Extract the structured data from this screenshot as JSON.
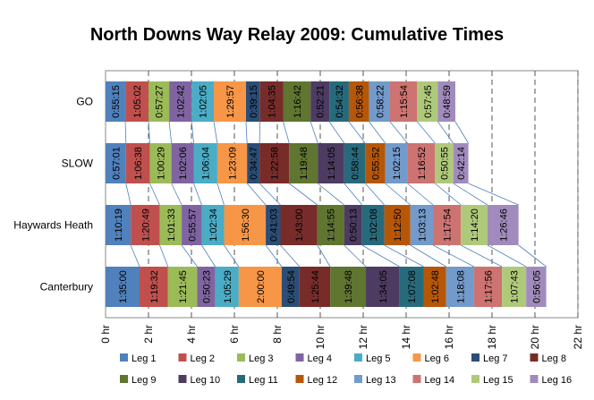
{
  "chart_data": {
    "type": "bar",
    "orientation": "horizontal",
    "stacked": true,
    "title": "North Downs Way Relay 2009: Cumulative Times",
    "xlabel": "",
    "ylabel": "",
    "xlim": [
      0,
      22
    ],
    "x_unit": "hr",
    "x_ticks": [
      "0 hr",
      "2 hr",
      "4 hr",
      "6 hr",
      "8 hr",
      "10 hr",
      "12 hr",
      "14 hr",
      "16 hr",
      "18 hr",
      "20 hr",
      "22 hr"
    ],
    "grid": "vertical dashed",
    "legend_position": "bottom",
    "categories": [
      "GO",
      "SLOW",
      "Haywards Heath",
      "Canterbury"
    ],
    "series": [
      {
        "name": "Leg 1",
        "color": "#4f81bd",
        "labels": [
          "0:55:15",
          "0:57:01",
          "1:10:19",
          "1:35:00"
        ]
      },
      {
        "name": "Leg 2",
        "color": "#c0504d",
        "labels": [
          "1:05:02",
          "1:06:38",
          "1:20:49",
          "1:19:32"
        ]
      },
      {
        "name": "Leg 3",
        "color": "#9bbb59",
        "labels": [
          "0:57:27",
          "1:00:29",
          "1:01:33",
          "1:21:45"
        ]
      },
      {
        "name": "Leg 4",
        "color": "#8064a2",
        "labels": [
          "1:02:42",
          "1:02:06",
          "0:55:57",
          "0:50:23"
        ]
      },
      {
        "name": "Leg 5",
        "color": "#4bacc6",
        "labels": [
          "1:02:05",
          "1:06:04",
          "1:02:34",
          "1:05:29"
        ]
      },
      {
        "name": "Leg 6",
        "color": "#f79646",
        "labels": [
          "1:29:57",
          "1:23:09",
          "1:56:30",
          "2:00:00"
        ]
      },
      {
        "name": "Leg 7",
        "color": "#2c4d75",
        "labels": [
          "0:39:15",
          "0:34:47",
          "0:41:03",
          "0:49:54"
        ]
      },
      {
        "name": "Leg 8",
        "color": "#772c2a",
        "labels": [
          "1:04:35",
          "1:22:58",
          "1:43:00",
          "1:25:44"
        ]
      },
      {
        "name": "Leg 9",
        "color": "#5f7530",
        "labels": [
          "1:16:42",
          "1:19:48",
          "1:14:55",
          "1:39:48"
        ]
      },
      {
        "name": "Leg 10",
        "color": "#4d3b62",
        "labels": [
          "0:52:21",
          "1:14:05",
          "0:50:13",
          "1:34:05"
        ]
      },
      {
        "name": "Leg 11",
        "color": "#276a7c",
        "labels": [
          "0:54:32",
          "0:58:44",
          "1:02:08",
          "1:07:08"
        ]
      },
      {
        "name": "Leg 12",
        "color": "#b65708",
        "labels": [
          "0:56:38",
          "0:55:52",
          "1:12:50",
          "1:02:48"
        ]
      },
      {
        "name": "Leg 13",
        "color": "#729aca",
        "labels": [
          "0:58:22",
          "1:02:15",
          "1:03:13",
          "1:18:08"
        ]
      },
      {
        "name": "Leg 14",
        "color": "#cd7371",
        "labels": [
          "1:15:54",
          "1:16:52",
          "1:17:54",
          "1:17:56"
        ]
      },
      {
        "name": "Leg 15",
        "color": "#afc97a",
        "labels": [
          "0:57:45",
          "0:50:55",
          "1:14:20",
          "1:07:43"
        ]
      },
      {
        "name": "Leg 16",
        "color": "#a18bbd",
        "labels": [
          "0:48:59",
          "0:42:14",
          "1:26:46",
          "0:56:05"
        ]
      }
    ]
  }
}
